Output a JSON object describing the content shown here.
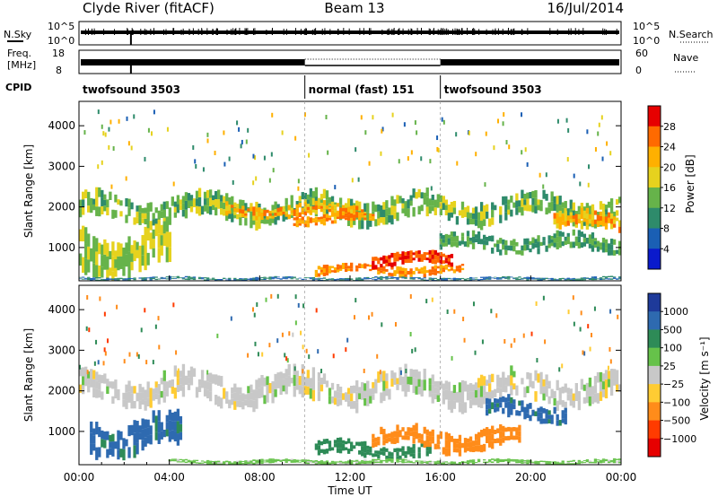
{
  "header": {
    "station": "Clyde River (fitACF)",
    "beam": "Beam 13",
    "date": "16/Jul/2014"
  },
  "nsky_panel": {
    "left_label": "N.Sky",
    "right_label": "N.Search",
    "left_ticks": [
      "10^5",
      "10^0"
    ],
    "right_ticks": [
      "10^5",
      "10^0"
    ]
  },
  "freq_panel": {
    "left_label": "Freq.",
    "left_unit": "[MHz]",
    "right_label": "Nave",
    "left_ticks": [
      "18",
      "8"
    ],
    "right_ticks": [
      "60",
      "0"
    ]
  },
  "cpid": {
    "label": "CPID",
    "segments": [
      {
        "name": "twofsound 3503",
        "start_hour": 0,
        "end_hour": 10
      },
      {
        "name": "normal (fast) 151",
        "start_hour": 10,
        "end_hour": 16
      },
      {
        "name": "twofsound 3503",
        "start_hour": 16,
        "end_hour": 24
      }
    ]
  },
  "power_panel": {
    "ylabel": "Slant Range [km]",
    "colorbar_label": "Power [dB]",
    "colorbar_ticks": [
      "28",
      "24",
      "20",
      "16",
      "12",
      "8",
      "4"
    ],
    "colorbar_colors": [
      "#e60000",
      "#ff6a00",
      "#ffb000",
      "#e6d21e",
      "#66b34a",
      "#2e8b6b",
      "#1a5fb4",
      "#0a1acc"
    ]
  },
  "velocity_panel": {
    "ylabel": "Slant Range [km]",
    "colorbar_label": "Velocity [m s⁻¹]",
    "colorbar_ticks": [
      "1000",
      "500",
      "100",
      "25",
      "−25",
      "−100",
      "−500",
      "−1000"
    ],
    "colorbar_colors": [
      "#1e3a9a",
      "#2e6ab0",
      "#2e8b57",
      "#66c24a",
      "#c8c8c8",
      "#ffcc33",
      "#ff8c1a",
      "#ff3b00",
      "#e60000"
    ]
  },
  "y_ticks": [
    "4000",
    "3000",
    "2000",
    "1000"
  ],
  "x_ticks": [
    "00:00",
    "04:00",
    "08:00",
    "12:00",
    "16:00",
    "20:00",
    "00:00"
  ],
  "xlabel": "Time UT",
  "chart_data": {
    "type": "heatmap",
    "title": "Clyde River (fitACF)  Beam 13  16/Jul/2014",
    "xlabel": "Time UT",
    "ylabel": "Slant Range [km]",
    "xlim_hours": [
      0,
      24
    ],
    "ylim_km": [
      180,
      4600
    ],
    "y_ticks_km": [
      1000,
      2000,
      3000,
      4000
    ],
    "x_ticks_hours": [
      0,
      4,
      8,
      12,
      16,
      20,
      24
    ],
    "grid": false,
    "power_features": [
      {
        "t0": 0.0,
        "t1": 24.0,
        "center_km": 1950,
        "half_width_km": 300,
        "db": 14
      },
      {
        "t0": 6.5,
        "t1": 12.5,
        "center_km": 1900,
        "half_width_km": 150,
        "db": 22
      },
      {
        "t0": 9.5,
        "t1": 13.0,
        "center_km": 1700,
        "half_width_km": 120,
        "db": 24
      },
      {
        "t0": 10.5,
        "t1": 17.0,
        "center_km": 450,
        "half_width_km": 120,
        "db": 24
      },
      {
        "t0": 13.0,
        "t1": 16.5,
        "center_km": 700,
        "half_width_km": 150,
        "db": 28
      },
      {
        "t0": 0.0,
        "t1": 4.0,
        "center_km": 900,
        "half_width_km": 500,
        "db": 16
      },
      {
        "t0": 21.0,
        "t1": 24.0,
        "center_km": 1650,
        "half_width_km": 200,
        "db": 22
      },
      {
        "t0": 16.0,
        "t1": 24.0,
        "center_km": 1100,
        "half_width_km": 200,
        "db": 12
      },
      {
        "t0": 0.0,
        "t1": 24.0,
        "center_km": 230,
        "half_width_km": 40,
        "db": 8
      }
    ],
    "velocity_features": [
      {
        "t0": 0.0,
        "t1": 24.0,
        "center_km": 2050,
        "half_width_km": 350,
        "velocity": 0
      },
      {
        "t0": 0.5,
        "t1": 4.5,
        "center_km": 900,
        "half_width_km": 400,
        "velocity": 600
      },
      {
        "t0": 10.5,
        "t1": 15.5,
        "center_km": 550,
        "half_width_km": 180,
        "velocity": 150
      },
      {
        "t0": 13.0,
        "t1": 19.5,
        "center_km": 800,
        "half_width_km": 250,
        "velocity": -400
      },
      {
        "t0": 18.0,
        "t1": 21.5,
        "center_km": 1500,
        "half_width_km": 250,
        "velocity": 600
      },
      {
        "t0": 4.0,
        "t1": 24.0,
        "center_km": 250,
        "half_width_km": 50,
        "velocity": 50
      }
    ]
  }
}
